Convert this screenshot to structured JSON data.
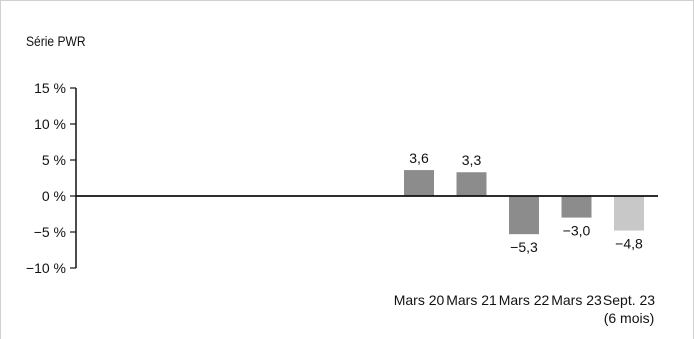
{
  "chart_data": {
    "type": "bar",
    "subtitle": "Série PWR",
    "categories": [
      "Mars 20",
      "Mars 21",
      "Mars 22",
      "Mars 23",
      "Sept. 23"
    ],
    "category_sublabels": [
      "",
      "",
      "",
      "",
      "(6 mois)"
    ],
    "values": [
      3.6,
      3.3,
      -5.3,
      -3.0,
      -4.8
    ],
    "value_labels": [
      "3,6",
      "3,3",
      "−5,3",
      "−3,0",
      "−4,8"
    ],
    "bar_colors": [
      "#8c8c8c",
      "#8c8c8c",
      "#8c8c8c",
      "#8c8c8c",
      "#c8c8c8"
    ],
    "ylim": [
      -10,
      15
    ],
    "yticks": [
      15,
      10,
      5,
      0,
      -5,
      -10
    ],
    "ytick_labels": [
      "15 %",
      "10 %",
      "5 %",
      "0 %",
      "−5 %",
      "−10 %"
    ],
    "grid": false,
    "legend": false
  }
}
